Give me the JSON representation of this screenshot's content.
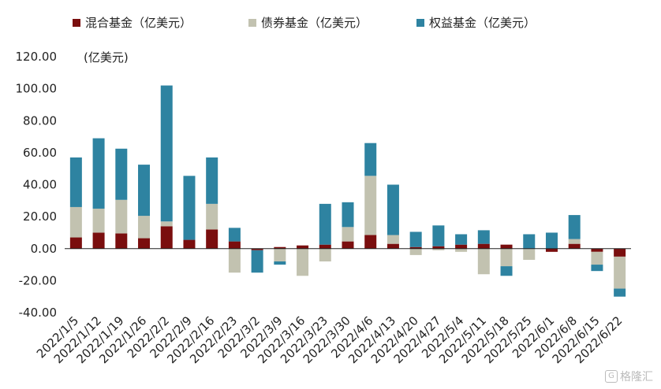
{
  "chart_data": {
    "type": "bar",
    "stacked": true,
    "unit_label": "(亿美元)",
    "categories": [
      "2022/1/5",
      "2022/1/12",
      "2022/1/19",
      "2022/1/26",
      "2022/2/2",
      "2022/2/9",
      "2022/2/16",
      "2022/2/23",
      "2022/3/2",
      "2022/3/9",
      "2022/3/16",
      "2022/3/23",
      "2022/3/30",
      "2022/4/6",
      "2022/4/13",
      "2022/4/20",
      "2022/4/27",
      "2022/5/4",
      "2022/5/11",
      "2022/5/18",
      "2022/5/25",
      "2022/6/1",
      "2022/6/8",
      "2022/6/15",
      "2022/6/22"
    ],
    "series": [
      {
        "name": "混合基金（亿美元）",
        "color": "#7a0e0e",
        "values": [
          7,
          10,
          9.5,
          6.5,
          14,
          5.5,
          12,
          4.5,
          -1,
          1,
          2,
          2.5,
          4.5,
          8.5,
          3,
          1,
          1.5,
          2.5,
          3,
          2.5,
          0,
          -2,
          3,
          -2,
          -5
        ]
      },
      {
        "name": "债券基金（亿美元）",
        "color": "#c2c2b0",
        "values": [
          19,
          15,
          21,
          14,
          3,
          0,
          16,
          -15,
          0,
          -8,
          -17,
          -8,
          9,
          37,
          5.5,
          -4,
          -1,
          -2,
          -16,
          -11,
          -7,
          0,
          3,
          -8,
          -20
        ]
      },
      {
        "name": "权益基金（亿美元）",
        "color": "#2e83a1",
        "values": [
          31,
          44,
          32,
          32,
          85,
          40,
          29,
          8.5,
          -14,
          -2,
          0,
          25.5,
          15.5,
          20.5,
          31.5,
          9.5,
          13,
          6.5,
          8.5,
          -6,
          9,
          10,
          15,
          -4,
          -5
        ]
      }
    ],
    "y_ticks": [
      "120.00",
      "100.00",
      "80.00",
      "60.00",
      "40.00",
      "20.00",
      "0.00",
      "-20.00",
      "-40.00"
    ],
    "ylim": [
      -40,
      120
    ],
    "grid": false,
    "legend_position": "top"
  },
  "watermark": {
    "text": "格隆汇",
    "icon": "G"
  }
}
